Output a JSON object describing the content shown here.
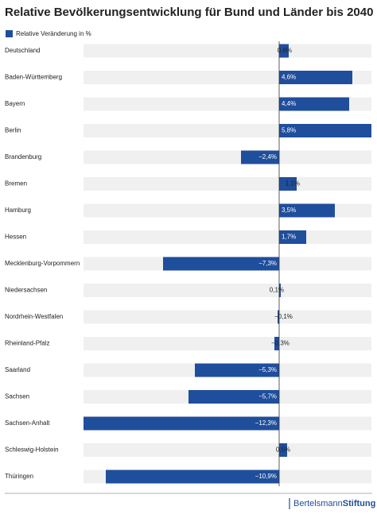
{
  "chart_data": {
    "type": "hbar",
    "title": "Relative Bevölkerungsentwicklung für Bund und Länder bis 2040",
    "categories": [
      "Deutschland",
      "Baden-Württemberg",
      "Bayern",
      "Berlin",
      "Brandenburg",
      "Bremen",
      "Hamburg",
      "Hessen",
      "Mecklenburg-Vorpommern",
      "Niedersachsen",
      "Nordrhein-Westfalen",
      "Rheinland-Pfalz",
      "Saarland",
      "Sachsen",
      "Sachsen-Anhalt",
      "Schleswig-Holstein",
      "Thüringen"
    ],
    "series": [
      {
        "name": "Relative Veränderung in %",
        "color": "#1f4e9c",
        "values": [
          0.6,
          4.6,
          4.4,
          5.8,
          -2.4,
          1.1,
          3.5,
          1.7,
          -7.3,
          0.1,
          -0.1,
          -0.3,
          -5.3,
          -5.7,
          -12.3,
          0.5,
          -10.9
        ],
        "value_labels": [
          "0,6%",
          "4,6%",
          "4,4%",
          "5,8%",
          "−2,4%",
          "1,1%",
          "3,5%",
          "1,7%",
          "−7,3%",
          "0,1%",
          "−0,1%",
          "−0,3%",
          "−5,3%",
          "−5,7%",
          "−12,3%",
          "0,5%",
          "−10,9%"
        ]
      }
    ]
  },
  "logo": {
    "text": "Bertelsmann",
    "text_bold": "Stiftung"
  }
}
